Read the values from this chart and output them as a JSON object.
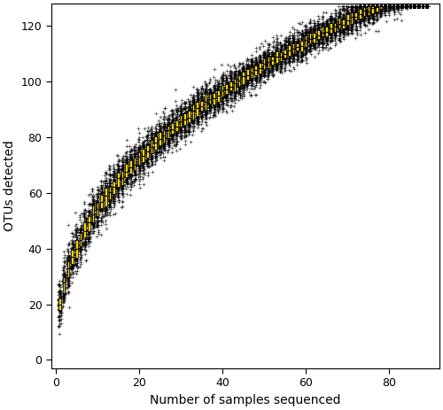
{
  "n_sites": 89,
  "total_species": 122,
  "xlabel": "Number of samples sequenced",
  "ylabel": "OTUs detected",
  "xlim": [
    -1,
    92
  ],
  "ylim": [
    -3,
    128
  ],
  "xticks": [
    0,
    20,
    40,
    60,
    80
  ],
  "yticks": [
    0,
    20,
    40,
    60,
    80,
    100,
    120
  ],
  "ribbon_color": "#FFD700",
  "ribbon_edge_color": "#000000",
  "mean_line_color": "#000000",
  "scatter_color": "#000000",
  "background_color": "#ffffff",
  "seed": 42,
  "n_perms": 100,
  "power": 0.42,
  "scale": 20.5,
  "sd_scale": 1.0,
  "sd_base": 2.5,
  "sd_decay": 0.018,
  "outer_mult": 3.2,
  "box_width": 0.55
}
